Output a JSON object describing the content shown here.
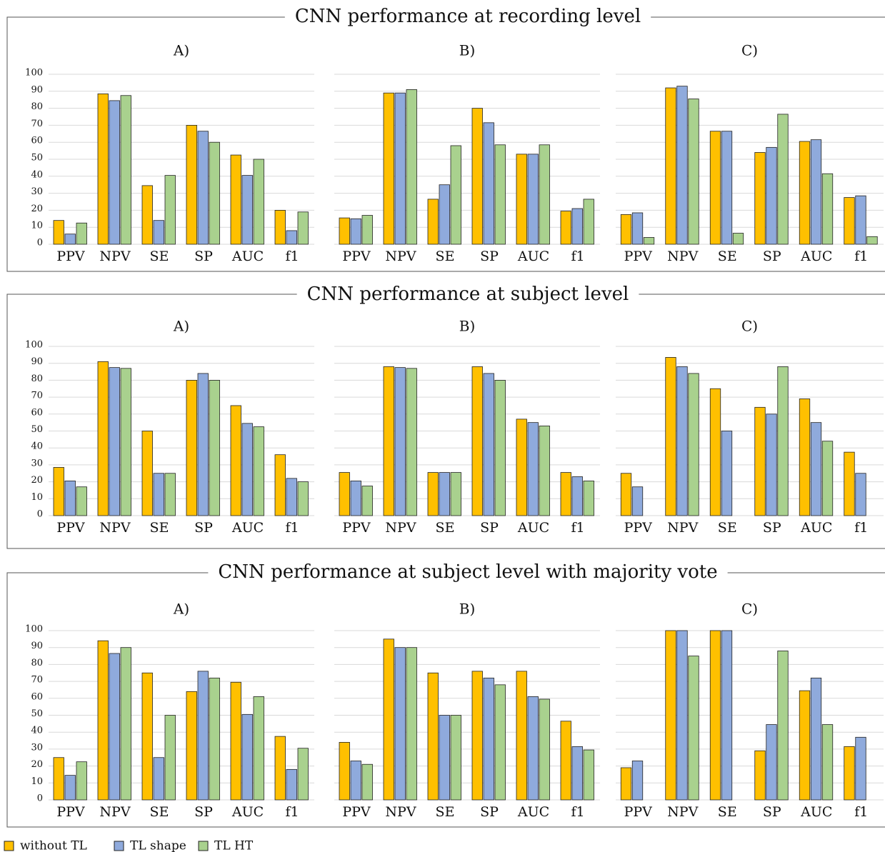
{
  "chart_data": [
    {
      "type": "bar",
      "group_title": "CNN performance at recording level",
      "title": "A)",
      "show_ytick_labels": true,
      "categories": [
        "PPV",
        "NPV",
        "SE",
        "SP",
        "AUC",
        "f1"
      ],
      "series": [
        {
          "name": "without TL",
          "color": "#ffc000",
          "values": [
            14,
            88.5,
            34.5,
            70,
            52.5,
            20
          ]
        },
        {
          "name": "TL shape",
          "color": "#8faadc",
          "values": [
            6,
            84.5,
            14,
            66.5,
            40.5,
            8
          ]
        },
        {
          "name": "TL HT",
          "color": "#a9d18e",
          "values": [
            12.5,
            87.5,
            40.5,
            60,
            50,
            19
          ]
        }
      ],
      "ylim": [
        0,
        100
      ],
      "yticks": [
        0,
        10,
        20,
        30,
        40,
        50,
        60,
        70,
        80,
        90,
        100
      ],
      "grid": true
    },
    {
      "type": "bar",
      "title": "B)",
      "show_ytick_labels": false,
      "categories": [
        "PPV",
        "NPV",
        "SE",
        "SP",
        "AUC",
        "f1"
      ],
      "series": [
        {
          "color": "#ffc000",
          "values": [
            15.5,
            89,
            26.5,
            80,
            53,
            19.5
          ]
        },
        {
          "color": "#8faadc",
          "values": [
            15,
            89,
            35,
            71.5,
            53,
            21
          ]
        },
        {
          "color": "#a9d18e",
          "values": [
            17,
            91,
            58,
            58.5,
            58.5,
            26.5
          ]
        }
      ],
      "ylim": [
        0,
        100
      ],
      "yticks": [
        0,
        10,
        20,
        30,
        40,
        50,
        60,
        70,
        80,
        90,
        100
      ],
      "grid": true
    },
    {
      "type": "bar",
      "title": "C)",
      "show_ytick_labels": false,
      "categories": [
        "PPV",
        "NPV",
        "SE",
        "SP",
        "AUC",
        "f1"
      ],
      "series": [
        {
          "color": "#ffc000",
          "values": [
            17.5,
            92,
            66.5,
            54,
            60.5,
            27.5
          ]
        },
        {
          "color": "#8faadc",
          "values": [
            18.5,
            93,
            66.5,
            57,
            61.5,
            28.5
          ]
        },
        {
          "color": "#a9d18e",
          "values": [
            4,
            85.5,
            6.5,
            76.5,
            41.5,
            4.5
          ]
        }
      ],
      "ylim": [
        0,
        100
      ],
      "yticks": [
        0,
        10,
        20,
        30,
        40,
        50,
        60,
        70,
        80,
        90,
        100
      ],
      "grid": true
    },
    {
      "type": "bar",
      "group_title": "CNN performance at subject level",
      "title": "A)",
      "show_ytick_labels": true,
      "categories": [
        "PPV",
        "NPV",
        "SE",
        "SP",
        "AUC",
        "f1"
      ],
      "series": [
        {
          "color": "#ffc000",
          "values": [
            28.5,
            91,
            50,
            80,
            65,
            36
          ]
        },
        {
          "color": "#8faadc",
          "values": [
            20.5,
            87.5,
            25,
            84,
            54.5,
            22
          ]
        },
        {
          "color": "#a9d18e",
          "values": [
            17,
            87,
            25,
            80,
            52.5,
            20
          ]
        }
      ],
      "ylim": [
        0,
        100
      ],
      "yticks": [
        0,
        10,
        20,
        30,
        40,
        50,
        60,
        70,
        80,
        90,
        100
      ],
      "grid": true
    },
    {
      "type": "bar",
      "title": "B)",
      "show_ytick_labels": false,
      "categories": [
        "PPV",
        "NPV",
        "SE",
        "SP",
        "AUC",
        "f1"
      ],
      "series": [
        {
          "color": "#ffc000",
          "values": [
            25.5,
            88,
            25.5,
            88,
            57,
            25.5
          ]
        },
        {
          "color": "#8faadc",
          "values": [
            20.5,
            87.5,
            25.5,
            84,
            55,
            23
          ]
        },
        {
          "color": "#a9d18e",
          "values": [
            17.5,
            87,
            25.5,
            80,
            53,
            20.5
          ]
        }
      ],
      "ylim": [
        0,
        100
      ],
      "yticks": [
        0,
        10,
        20,
        30,
        40,
        50,
        60,
        70,
        80,
        90,
        100
      ],
      "grid": true
    },
    {
      "type": "bar",
      "title": "C)",
      "show_ytick_labels": false,
      "categories": [
        "PPV",
        "NPV",
        "SE",
        "SP",
        "AUC",
        "f1"
      ],
      "series": [
        {
          "color": "#ffc000",
          "values": [
            25,
            93.5,
            75,
            64,
            69,
            37.5
          ]
        },
        {
          "color": "#8faadc",
          "values": [
            17,
            88,
            50,
            60,
            55,
            25
          ]
        },
        {
          "color": "#a9d18e",
          "values": [
            0,
            84,
            0,
            88,
            44,
            0
          ]
        }
      ],
      "ylim": [
        0,
        100
      ],
      "yticks": [
        0,
        10,
        20,
        30,
        40,
        50,
        60,
        70,
        80,
        90,
        100
      ],
      "grid": true
    },
    {
      "type": "bar",
      "group_title": "CNN performance at subject level with majority vote",
      "title": "A)",
      "show_ytick_labels": true,
      "categories": [
        "PPV",
        "NPV",
        "SE",
        "SP",
        "AUC",
        "f1"
      ],
      "series": [
        {
          "color": "#ffc000",
          "values": [
            25,
            94,
            75,
            64,
            69.5,
            37.5
          ]
        },
        {
          "color": "#8faadc",
          "values": [
            14.5,
            86.5,
            25,
            76,
            50.5,
            18
          ]
        },
        {
          "color": "#a9d18e",
          "values": [
            22.5,
            90,
            50,
            72,
            61,
            30.5
          ]
        }
      ],
      "ylim": [
        0,
        100
      ],
      "yticks": [
        0,
        10,
        20,
        30,
        40,
        50,
        60,
        70,
        80,
        90,
        100
      ],
      "grid": true
    },
    {
      "type": "bar",
      "title": "B)",
      "show_ytick_labels": false,
      "categories": [
        "PPV",
        "NPV",
        "SE",
        "SP",
        "AUC",
        "f1"
      ],
      "series": [
        {
          "color": "#ffc000",
          "values": [
            34,
            95,
            75,
            76,
            76,
            46.5
          ]
        },
        {
          "color": "#8faadc",
          "values": [
            23,
            90,
            50,
            72,
            61,
            31.5
          ]
        },
        {
          "color": "#a9d18e",
          "values": [
            21,
            90,
            50,
            68,
            59.5,
            29.5
          ]
        }
      ],
      "ylim": [
        0,
        100
      ],
      "yticks": [
        0,
        10,
        20,
        30,
        40,
        50,
        60,
        70,
        80,
        90,
        100
      ],
      "grid": true
    },
    {
      "type": "bar",
      "title": "C)",
      "show_ytick_labels": false,
      "categories": [
        "PPV",
        "NPV",
        "SE",
        "SP",
        "AUC",
        "f1"
      ],
      "series": [
        {
          "color": "#ffc000",
          "values": [
            19,
            100,
            100,
            29,
            64.5,
            31.5
          ]
        },
        {
          "color": "#8faadc",
          "values": [
            23,
            100,
            100,
            44.5,
            72,
            37
          ]
        },
        {
          "color": "#a9d18e",
          "values": [
            0,
            85,
            0,
            88,
            44.5,
            0
          ]
        }
      ],
      "ylim": [
        0,
        100
      ],
      "yticks": [
        0,
        10,
        20,
        30,
        40,
        50,
        60,
        70,
        80,
        90,
        100
      ],
      "grid": true
    }
  ]
}
